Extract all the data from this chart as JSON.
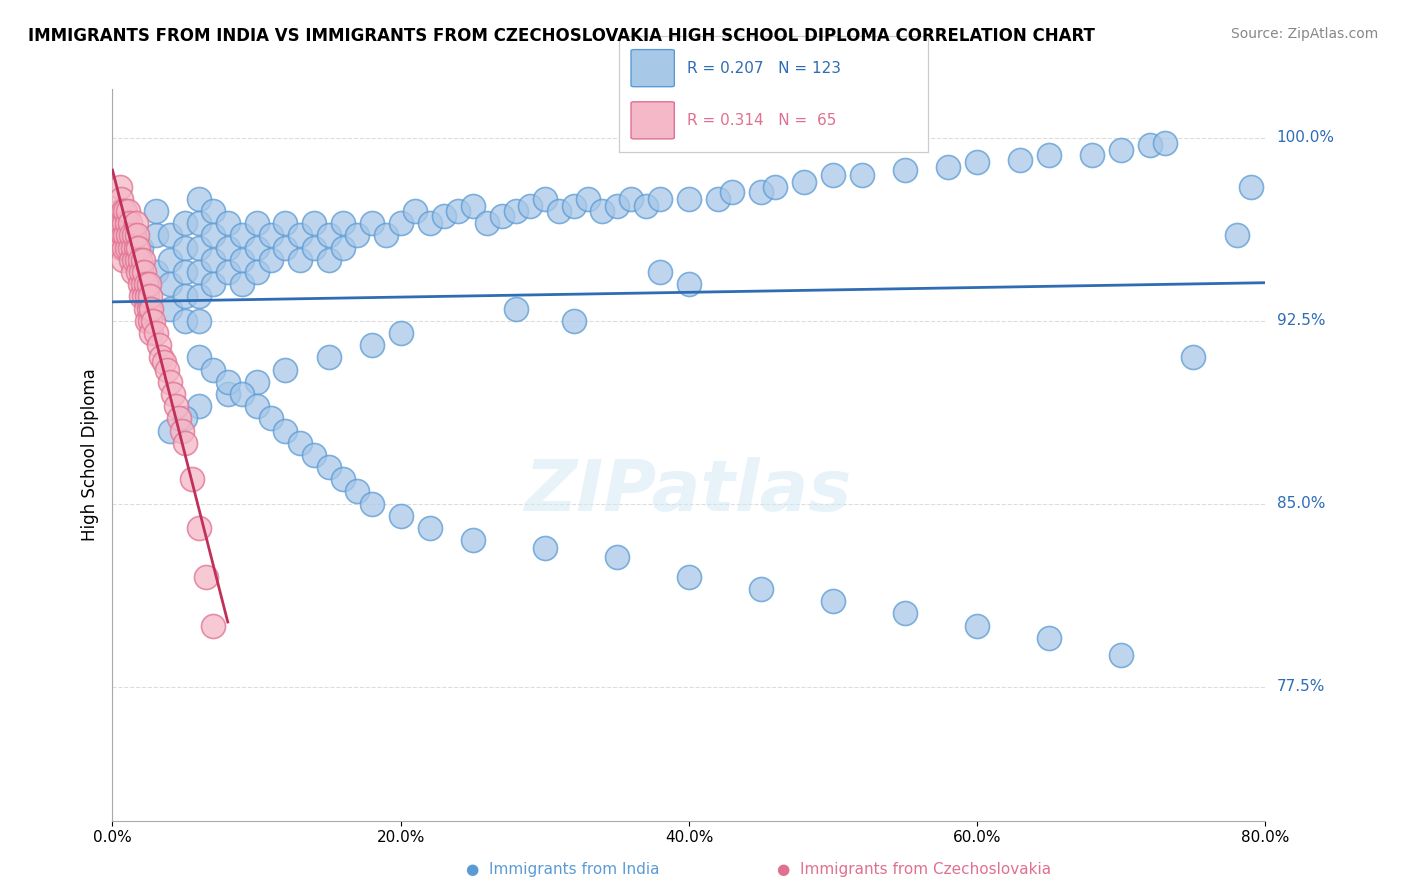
{
  "title": "IMMIGRANTS FROM INDIA VS IMMIGRANTS FROM CZECHOSLOVAKIA HIGH SCHOOL DIPLOMA CORRELATION CHART",
  "source": "Source: ZipAtlas.com",
  "xlabel_ticks": [
    "0.0%",
    "20.0%",
    "40.0%",
    "60.0%",
    "80.0%"
  ],
  "xlabel_vals": [
    0.0,
    0.2,
    0.4,
    0.6,
    0.8
  ],
  "ylabel": "High School Diploma",
  "ylabel_ticks_right": [
    "100.0%",
    "92.5%",
    "85.0%",
    "77.5%"
  ],
  "ylabel_vals_right": [
    1.0,
    0.925,
    0.85,
    0.775
  ],
  "xlim": [
    0.0,
    0.8
  ],
  "ylim": [
    0.72,
    1.02
  ],
  "india_color": "#a8c8e8",
  "india_edge": "#5b9bd5",
  "czech_color": "#f4b8c8",
  "czech_edge": "#e07090",
  "india_line_color": "#2e6db4",
  "czech_line_color": "#c0305a",
  "india_R": 0.207,
  "india_N": 123,
  "czech_R": 0.314,
  "czech_N": 65,
  "watermark": "ZIPatlas",
  "background_color": "#ffffff",
  "grid_color": "#dddddd",
  "legend_box_india": "#a8c8e8",
  "legend_box_czech": "#f4b8c8",
  "india_scatter_x": [
    0.02,
    0.03,
    0.03,
    0.03,
    0.04,
    0.04,
    0.04,
    0.04,
    0.05,
    0.05,
    0.05,
    0.05,
    0.05,
    0.06,
    0.06,
    0.06,
    0.06,
    0.06,
    0.06,
    0.07,
    0.07,
    0.07,
    0.07,
    0.08,
    0.08,
    0.08,
    0.09,
    0.09,
    0.09,
    0.1,
    0.1,
    0.1,
    0.11,
    0.11,
    0.12,
    0.12,
    0.13,
    0.13,
    0.14,
    0.14,
    0.15,
    0.15,
    0.16,
    0.16,
    0.17,
    0.18,
    0.19,
    0.2,
    0.21,
    0.22,
    0.23,
    0.24,
    0.25,
    0.26,
    0.27,
    0.28,
    0.29,
    0.3,
    0.31,
    0.32,
    0.33,
    0.34,
    0.35,
    0.36,
    0.37,
    0.38,
    0.4,
    0.42,
    0.43,
    0.45,
    0.46,
    0.48,
    0.5,
    0.52,
    0.55,
    0.58,
    0.6,
    0.63,
    0.65,
    0.68,
    0.7,
    0.72,
    0.73,
    0.38,
    0.4,
    0.28,
    0.32,
    0.2,
    0.18,
    0.15,
    0.12,
    0.1,
    0.08,
    0.06,
    0.05,
    0.04,
    0.06,
    0.07,
    0.08,
    0.09,
    0.1,
    0.11,
    0.12,
    0.13,
    0.14,
    0.15,
    0.16,
    0.17,
    0.18,
    0.2,
    0.22,
    0.25,
    0.3,
    0.35,
    0.4,
    0.45,
    0.5,
    0.55,
    0.6,
    0.65,
    0.7,
    0.75,
    0.78,
    0.79
  ],
  "india_scatter_y": [
    0.955,
    0.96,
    0.945,
    0.97,
    0.96,
    0.95,
    0.94,
    0.93,
    0.965,
    0.955,
    0.945,
    0.935,
    0.925,
    0.975,
    0.965,
    0.955,
    0.945,
    0.935,
    0.925,
    0.97,
    0.96,
    0.95,
    0.94,
    0.965,
    0.955,
    0.945,
    0.96,
    0.95,
    0.94,
    0.965,
    0.955,
    0.945,
    0.96,
    0.95,
    0.965,
    0.955,
    0.96,
    0.95,
    0.965,
    0.955,
    0.96,
    0.95,
    0.965,
    0.955,
    0.96,
    0.965,
    0.96,
    0.965,
    0.97,
    0.965,
    0.968,
    0.97,
    0.972,
    0.965,
    0.968,
    0.97,
    0.972,
    0.975,
    0.97,
    0.972,
    0.975,
    0.97,
    0.972,
    0.975,
    0.972,
    0.975,
    0.975,
    0.975,
    0.978,
    0.978,
    0.98,
    0.982,
    0.985,
    0.985,
    0.987,
    0.988,
    0.99,
    0.991,
    0.993,
    0.993,
    0.995,
    0.997,
    0.998,
    0.945,
    0.94,
    0.93,
    0.925,
    0.92,
    0.915,
    0.91,
    0.905,
    0.9,
    0.895,
    0.89,
    0.885,
    0.88,
    0.91,
    0.905,
    0.9,
    0.895,
    0.89,
    0.885,
    0.88,
    0.875,
    0.87,
    0.865,
    0.86,
    0.855,
    0.85,
    0.845,
    0.84,
    0.835,
    0.832,
    0.828,
    0.82,
    0.815,
    0.81,
    0.805,
    0.8,
    0.795,
    0.788,
    0.91,
    0.96,
    0.98
  ],
  "czech_scatter_x": [
    0.005,
    0.005,
    0.005,
    0.006,
    0.006,
    0.006,
    0.007,
    0.007,
    0.007,
    0.008,
    0.008,
    0.009,
    0.009,
    0.01,
    0.01,
    0.011,
    0.011,
    0.012,
    0.012,
    0.013,
    0.013,
    0.014,
    0.014,
    0.015,
    0.015,
    0.016,
    0.016,
    0.017,
    0.017,
    0.018,
    0.018,
    0.019,
    0.019,
    0.02,
    0.02,
    0.021,
    0.021,
    0.022,
    0.022,
    0.023,
    0.023,
    0.024,
    0.024,
    0.025,
    0.025,
    0.026,
    0.026,
    0.027,
    0.027,
    0.028,
    0.03,
    0.032,
    0.034,
    0.036,
    0.038,
    0.04,
    0.042,
    0.044,
    0.046,
    0.048,
    0.05,
    0.055,
    0.06,
    0.065,
    0.07
  ],
  "czech_scatter_y": [
    0.98,
    0.97,
    0.96,
    0.975,
    0.965,
    0.955,
    0.97,
    0.96,
    0.95,
    0.965,
    0.955,
    0.97,
    0.96,
    0.965,
    0.955,
    0.97,
    0.96,
    0.965,
    0.955,
    0.96,
    0.95,
    0.955,
    0.945,
    0.96,
    0.95,
    0.965,
    0.955,
    0.96,
    0.95,
    0.955,
    0.945,
    0.95,
    0.94,
    0.945,
    0.935,
    0.95,
    0.94,
    0.945,
    0.935,
    0.94,
    0.93,
    0.935,
    0.925,
    0.94,
    0.93,
    0.935,
    0.925,
    0.93,
    0.92,
    0.925,
    0.92,
    0.915,
    0.91,
    0.908,
    0.905,
    0.9,
    0.895,
    0.89,
    0.885,
    0.88,
    0.875,
    0.86,
    0.84,
    0.82,
    0.8
  ]
}
